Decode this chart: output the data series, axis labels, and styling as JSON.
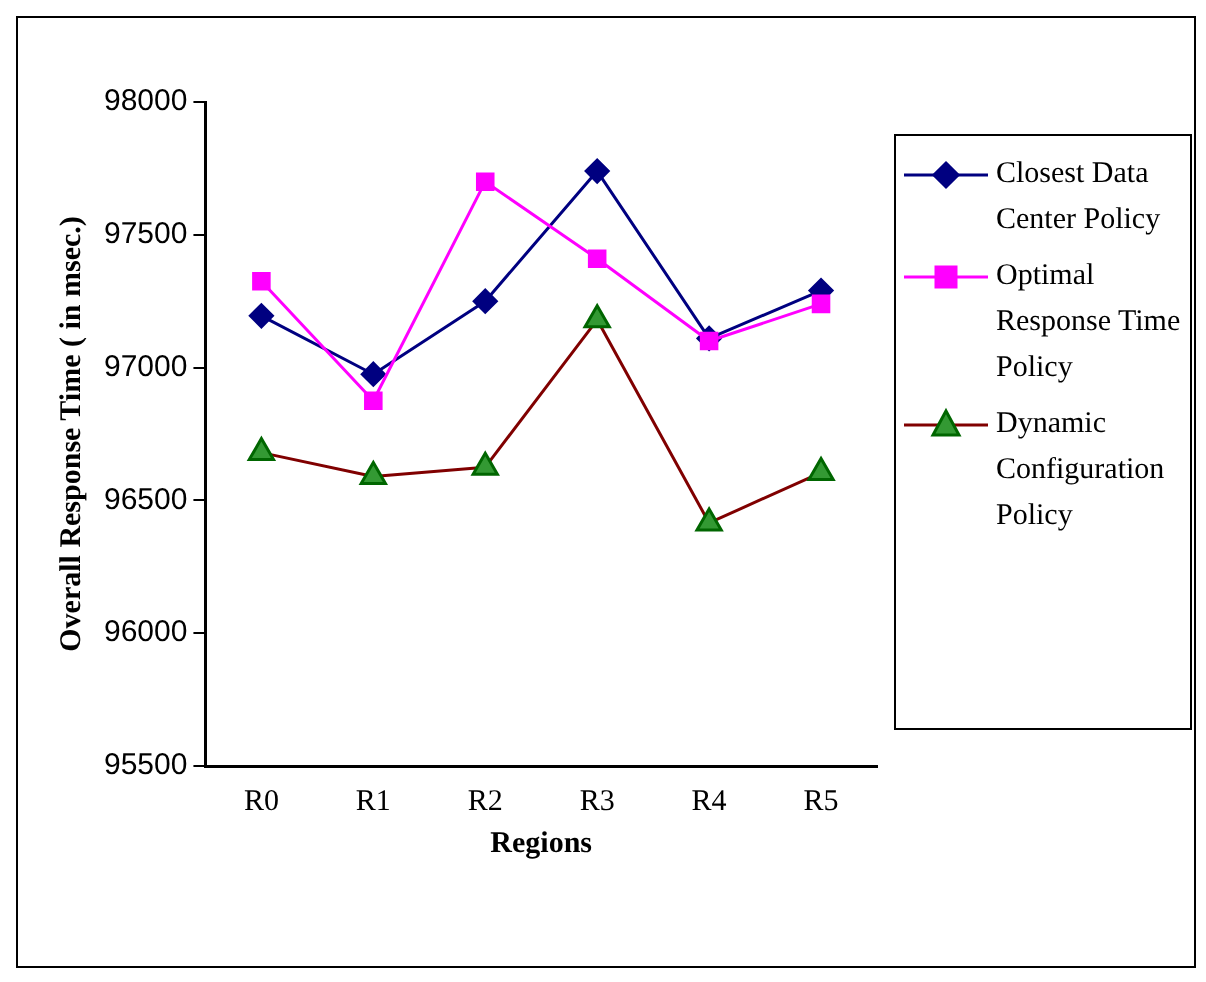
{
  "chart_data": {
    "type": "line",
    "xlabel": "Regions",
    "ylabel": "Overall Response Time ( in msec.)",
    "categories": [
      "R0",
      "R1",
      "R2",
      "R3",
      "R4",
      "R5"
    ],
    "ylim": [
      95500,
      98000
    ],
    "yticks": [
      95500,
      96000,
      96500,
      97000,
      97500,
      98000
    ],
    "grid": false,
    "legend": "right",
    "line_style": "solid",
    "series": [
      {
        "name": "Closest Data Center Policy",
        "color": "#000080",
        "marker": "diamond",
        "values": [
          97195,
          96975,
          97250,
          97740,
          97110,
          97290
        ]
      },
      {
        "name": "Optimal Response Time Policy",
        "color": "#ff00ff",
        "marker": "square",
        "values": [
          97325,
          96875,
          97700,
          97410,
          97100,
          97240
        ]
      },
      {
        "name": "Dynamic Configuration Policy",
        "color": "#800000",
        "marker": "triangle",
        "values": [
          96680,
          96590,
          96625,
          97180,
          96415,
          96605
        ]
      }
    ]
  }
}
